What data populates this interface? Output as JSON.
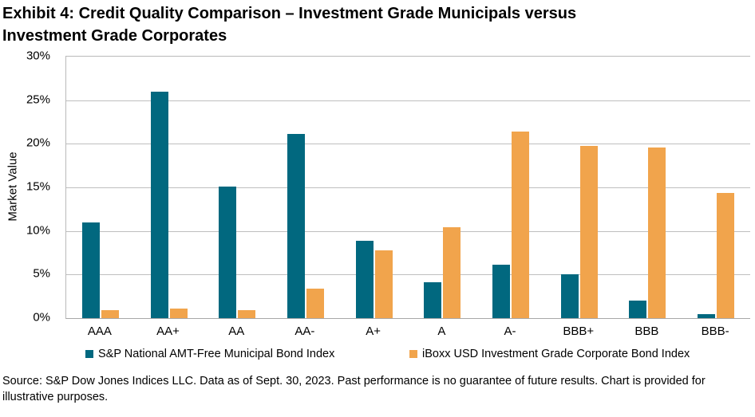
{
  "title": {
    "lines": [
      "Exhibit 4: Credit Quality Comparison – Investment Grade Municipals versus",
      "Investment Grade Corporates"
    ]
  },
  "chart_data": {
    "type": "bar",
    "title": "Exhibit 4: Credit Quality Comparison – Investment Grade Municipals versus Investment Grade Corporates",
    "xlabel": "",
    "ylabel": "Market Value",
    "ylim": [
      0,
      30
    ],
    "ytick_step": 5,
    "ytick_labels": [
      "0%",
      "5%",
      "10%",
      "15%",
      "20%",
      "25%",
      "30%"
    ],
    "grid": true,
    "legend_position": "bottom",
    "categories": [
      "AAA",
      "AA+",
      "AA",
      "AA-",
      "A+",
      "A",
      "A-",
      "BBB+",
      "BBB",
      "BBB-"
    ],
    "series": [
      {
        "name": "S&P National AMT-Free Municipal Bond Index",
        "color": "#01687F",
        "values": [
          11.0,
          26.0,
          15.1,
          21.1,
          8.9,
          4.1,
          6.1,
          5.0,
          2.0,
          0.5
        ]
      },
      {
        "name": "iBoxx USD Investment Grade Corporate Bond Index",
        "color": "#F1A44C",
        "values": [
          0.9,
          1.1,
          0.9,
          3.4,
          7.8,
          10.4,
          21.4,
          19.8,
          19.6,
          14.4
        ]
      }
    ]
  },
  "colors": {
    "gridline": "#BFBFBF",
    "axis": "#B9B9B9",
    "text": "#000000"
  },
  "footer": {
    "source_text": "Source: S&P Dow Jones Indices LLC. Data as of Sept. 30, 2023. Past performance is no guarantee of future results. Chart is provided for illustrative purposes."
  }
}
